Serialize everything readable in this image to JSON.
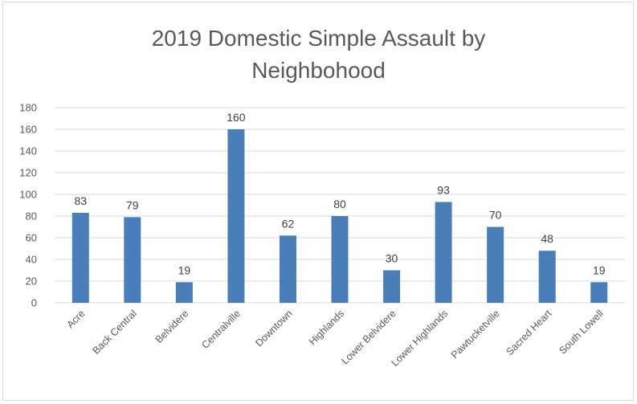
{
  "chart_data": {
    "type": "bar",
    "title_line1": "2019 Domestic Simple Assault by",
    "title_line2": "Neighbohood",
    "categories": [
      "Acre",
      "Back Central",
      "Belvidere",
      "Centralville",
      "Downtown",
      "Highlands",
      "Lower Belvidere",
      "Lower Highlands",
      "Pawtucketville",
      "Sacred Heart",
      "South Lowell"
    ],
    "values": [
      83,
      79,
      19,
      160,
      62,
      80,
      30,
      93,
      70,
      48,
      19
    ],
    "ylim": [
      0,
      180
    ],
    "yticks": [
      "0",
      "20",
      "40",
      "60",
      "80",
      "100",
      "120",
      "140",
      "160",
      "180"
    ],
    "grid": true,
    "legend": "none",
    "bar_color": "#4a7ebb",
    "grid_color": "#d9d9d9"
  }
}
